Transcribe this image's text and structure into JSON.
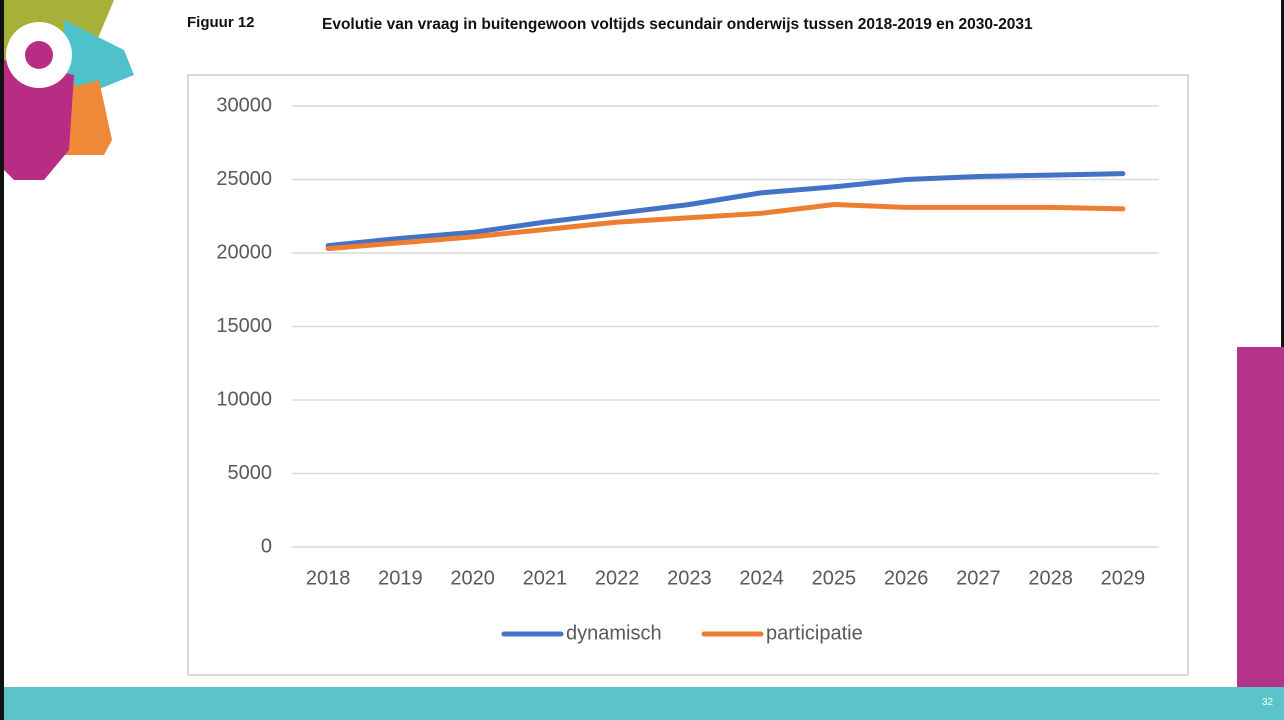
{
  "figure_label": "Figuur 12",
  "page_number": "32",
  "chart_data": {
    "type": "line",
    "title": "Evolutie van vraag in buitengewoon voltijds secundair onderwijs tussen 2018-2019 en 2030-2031",
    "categories": [
      "2018",
      "2019",
      "2020",
      "2021",
      "2022",
      "2023",
      "2024",
      "2025",
      "2026",
      "2027",
      "2028",
      "2029"
    ],
    "series": [
      {
        "name": "dynamisch",
        "color": "#4472c4",
        "values": [
          20500,
          21000,
          21400,
          22100,
          22700,
          23300,
          24100,
          24500,
          25000,
          25200,
          25300,
          25400
        ]
      },
      {
        "name": "participatie",
        "color": "#ed7d31",
        "values": [
          20300,
          20700,
          21100,
          21600,
          22100,
          22400,
          22700,
          23300,
          23100,
          23100,
          23100,
          23000
        ]
      }
    ],
    "ylim": [
      0,
      30000
    ],
    "yticks": [
      0,
      5000,
      10000,
      15000,
      20000,
      25000,
      30000
    ],
    "grid": true,
    "legend": "bottom"
  }
}
